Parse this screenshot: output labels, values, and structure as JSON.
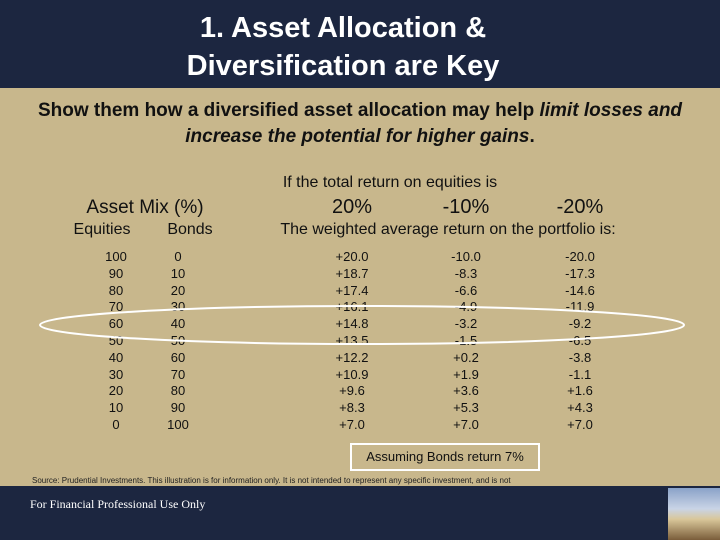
{
  "title": {
    "lines": [
      "1.  Asset Allocation &",
      "Diversification are Key"
    ]
  },
  "subtitle": {
    "parts": [
      "Show them how a diversified asset allocation may help",
      "limit losses and increase the potential for higher gains",
      "."
    ]
  },
  "table": {
    "scenario_caption": "If the total return on equities is",
    "group_header": "Asset Mix (%)",
    "scenarios": [
      "20%",
      "-10%",
      "-20%"
    ],
    "columns": [
      "Equities",
      "Bonds"
    ],
    "result_caption": "The weighted average return on the portfolio is:",
    "rows": [
      [
        "100",
        "0",
        "+20.0",
        "-10.0",
        "-20.0"
      ],
      [
        "90",
        "10",
        "+18.7",
        "-8.3",
        "-17.3"
      ],
      [
        "80",
        "20",
        "+17.4",
        "-6.6",
        "-14.6"
      ],
      [
        "70",
        "30",
        "+16.1",
        "-4.9",
        "-11.9"
      ],
      [
        "60",
        "40",
        "+14.8",
        "-3.2",
        "-9.2"
      ],
      [
        "50",
        "50",
        "+13.5",
        "-1.5",
        "-6.5"
      ],
      [
        "40",
        "60",
        "+12.2",
        "+0.2",
        "-3.8"
      ],
      [
        "30",
        "70",
        "+10.9",
        "+1.9",
        "-1.1"
      ],
      [
        "20",
        "80",
        "+9.6",
        "+3.6",
        "+1.6"
      ],
      [
        "10",
        "90",
        "+8.3",
        "+5.3",
        "+4.3"
      ],
      [
        "0",
        "100",
        "+7.0",
        "+7.0",
        "+7.0"
      ]
    ],
    "note": "Assuming Bonds return 7%"
  },
  "source": "Source: Prudential Investments. This illustration is for information only. It is not intended to represent any specific investment, and is not",
  "footer": "For Financial Professional Use Only"
}
